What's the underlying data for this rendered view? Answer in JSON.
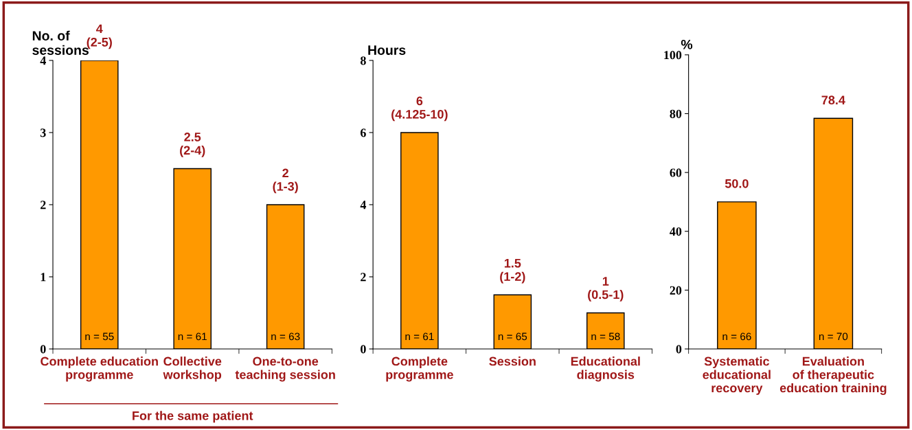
{
  "chart_data": [
    {
      "type": "bar",
      "ylabel": "No. of\nsessions",
      "categories": [
        "Complete education\nprogramme",
        "Collective\nworkshop",
        "One-to-one\nteaching session"
      ],
      "values": [
        4,
        2.5,
        2
      ],
      "color": "#ff9900",
      "value_labels": [
        "4\n(2-5)",
        "2.5\n(2-4)",
        "2\n(1-3)"
      ],
      "ylim": [
        0,
        4
      ],
      "yticks": [
        0,
        1,
        2,
        3,
        4
      ],
      "grid": false,
      "legend": false,
      "annotations": [
        {
          "text": "n = 55",
          "x": "Complete education\nprogramme",
          "y": 0
        },
        {
          "text": "n = 61",
          "x": "Collective\nworkshop",
          "y": 0
        },
        {
          "text": "n = 63",
          "x": "One-to-one\nteaching session",
          "y": 0
        },
        "For the same patient"
      ]
    },
    {
      "type": "bar",
      "ylabel": "Hours",
      "categories": [
        "Complete\nprogramme",
        "Session",
        "Educational\ndiagnosis"
      ],
      "values": [
        6,
        1.5,
        1
      ],
      "color": "#ff9900",
      "value_labels": [
        "6\n(4.125-10)",
        "1.5\n(1-2)",
        "1\n(0.5-1)"
      ],
      "ylim": [
        0,
        8
      ],
      "yticks": [
        0,
        2,
        4,
        6,
        8
      ],
      "grid": false,
      "legend": false,
      "annotations": [
        {
          "text": "n = 61",
          "x": "Complete\nprogramme",
          "y": 0
        },
        {
          "text": "n = 65",
          "x": "Session",
          "y": 0
        },
        {
          "text": "n = 58",
          "x": "Educational\ndiagnosis",
          "y": 0
        }
      ]
    },
    {
      "type": "bar",
      "ylabel": "%",
      "categories": [
        "Systematic\neducational\nrecovery",
        "Evaluation\nof therapeutic\neducation training"
      ],
      "values": [
        50.0,
        78.4
      ],
      "color": "#ff9900",
      "value_labels": [
        "50.0",
        "78.4"
      ],
      "ylim": [
        0,
        100
      ],
      "yticks": [
        0,
        20,
        40,
        60,
        80,
        100
      ],
      "grid": false,
      "legend": false,
      "annotations": [
        {
          "text": "n = 66",
          "x": "Systematic\neducational\nrecovery",
          "y": 0
        },
        {
          "text": "n = 70",
          "x": "Evaluation\nof therapeutic\neducation training",
          "y": 0
        }
      ]
    }
  ]
}
